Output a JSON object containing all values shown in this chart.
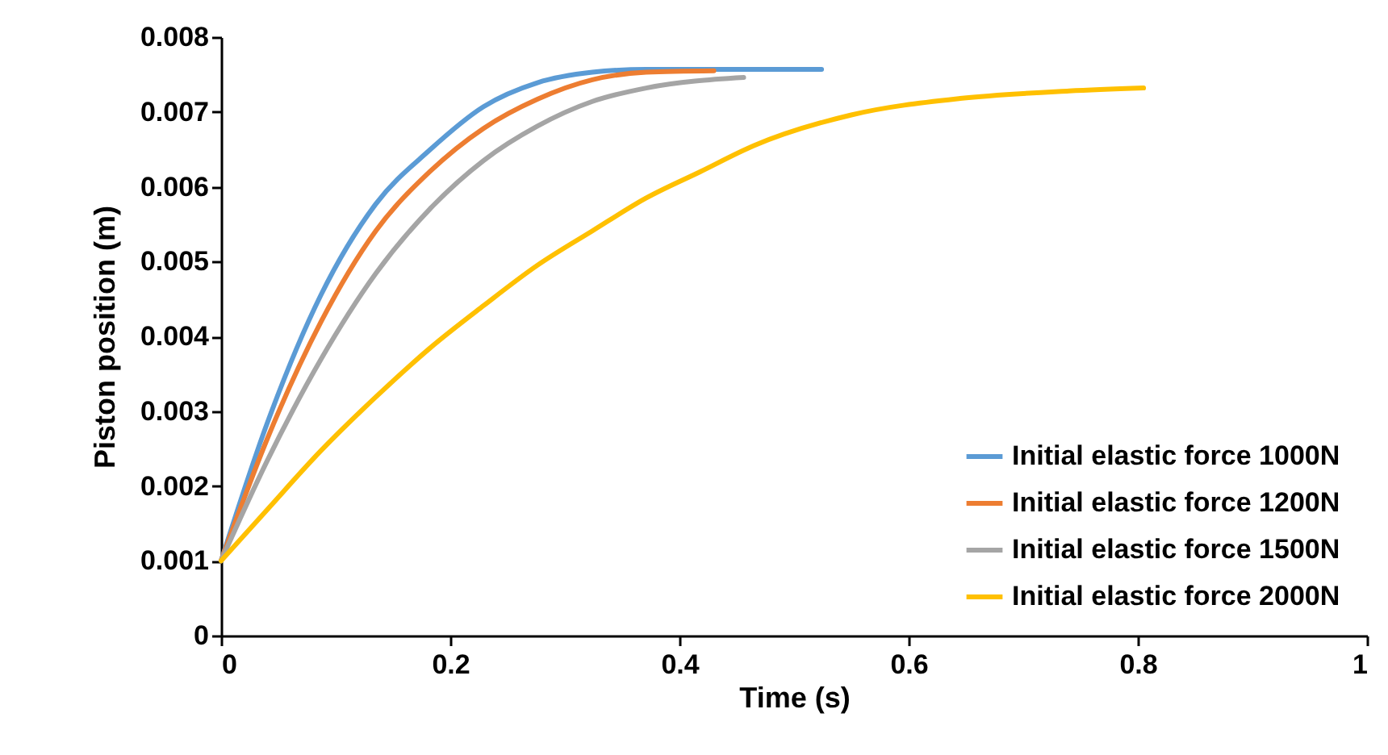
{
  "chart_data": {
    "type": "line",
    "xlabel": "Time (s)",
    "ylabel": "Piston position (m)",
    "xlim": [
      0,
      1
    ],
    "ylim": [
      0,
      0.008
    ],
    "xticks": [
      0,
      0.2,
      0.4,
      0.6,
      0.8,
      1
    ],
    "yticks": [
      0,
      0.001,
      0.002,
      0.003,
      0.004,
      0.005,
      0.006,
      0.007,
      0.008
    ],
    "legend": "bottom right",
    "grid": false,
    "marker": "none",
    "line_style": "solid",
    "series": [
      {
        "name": "Initial elastic force 1000N",
        "color": "#5b9bd5",
        "x": [
          0,
          0.04,
          0.087,
          0.135,
          0.182,
          0.229,
          0.276,
          0.324,
          0.371,
          0.43,
          0.524
        ],
        "values": [
          0.001,
          0.00283,
          0.00455,
          0.00577,
          0.00649,
          0.00707,
          0.00739,
          0.00753,
          0.00757,
          0.00757,
          0.00757
        ]
      },
      {
        "name": "Initial elastic force 1200N",
        "color": "#ed7d31",
        "x": [
          0,
          0.04,
          0.087,
          0.135,
          0.182,
          0.229,
          0.276,
          0.324,
          0.371,
          0.43
        ],
        "values": [
          0.001,
          0.00262,
          0.00419,
          0.00541,
          0.0062,
          0.00678,
          0.00717,
          0.00743,
          0.00753,
          0.00755
        ]
      },
      {
        "name": "Initial elastic force 1500N",
        "color": "#a5a5a5",
        "x": [
          0,
          0.04,
          0.087,
          0.135,
          0.182,
          0.229,
          0.276,
          0.324,
          0.371,
          0.456
        ],
        "values": [
          0.001,
          0.00233,
          0.00369,
          0.00484,
          0.0057,
          0.00635,
          0.00681,
          0.00714,
          0.00732,
          0.00746
        ]
      },
      {
        "name": "Initial elastic force 2000N",
        "color": "#ffc000",
        "x": [
          0,
          0.04,
          0.087,
          0.135,
          0.182,
          0.229,
          0.276,
          0.324,
          0.371,
          0.418,
          0.465,
          0.55,
          0.645,
          0.74,
          0.805
        ],
        "values": [
          0.001,
          0.00168,
          0.00247,
          0.00319,
          0.00384,
          0.00441,
          0.00495,
          0.00541,
          0.00585,
          0.0062,
          0.00655,
          0.00696,
          0.00718,
          0.00728,
          0.00732
        ]
      }
    ]
  }
}
